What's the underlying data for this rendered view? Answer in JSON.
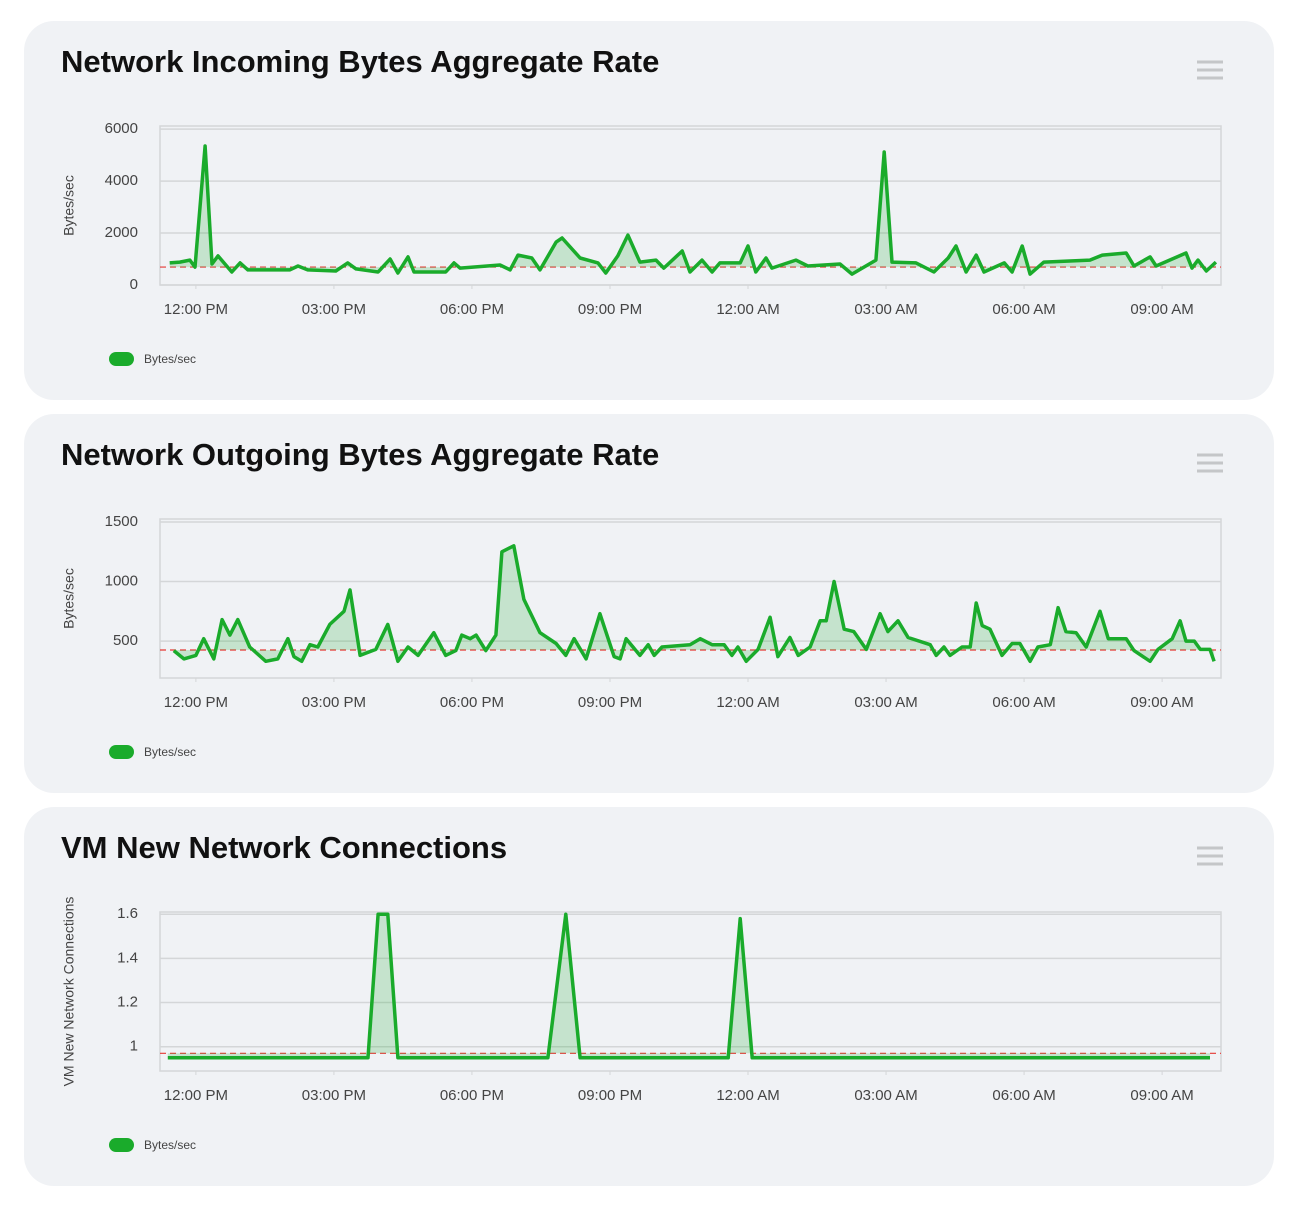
{
  "chart_data": [
    {
      "type": "line",
      "title": "Network Incoming Bytes Aggregate Rate",
      "ylabel": "Bytes/sec",
      "legend": "bottom-left",
      "grid": true,
      "x": [
        11.43,
        11.65,
        11.87,
        11.98,
        12.2,
        12.35,
        12.48,
        12.78,
        12.96,
        13.13,
        14.04,
        14.22,
        14.43,
        15.04,
        15.3,
        15.48,
        15.96,
        16.22,
        16.39,
        16.61,
        16.74,
        17.43,
        17.61,
        17.74,
        18.61,
        18.83,
        19,
        19.3,
        19.48,
        19.83,
        19.96,
        20.35,
        20.74,
        20.91,
        21.17,
        21.39,
        21.65,
        22,
        22.17,
        22.57,
        22.74,
        23,
        23.22,
        23.39,
        23.83,
        24,
        24.17,
        24.39,
        24.52,
        25.04,
        25.3,
        26,
        26.26,
        26.78,
        26.96,
        27.13,
        27.65,
        28.04,
        28.35,
        28.52,
        28.74,
        28.96,
        29.13,
        29.57,
        29.74,
        29.96,
        30.13,
        30.43,
        31.43,
        31.7,
        32.22,
        32.39,
        32.74,
        32.87,
        33.52,
        33.65,
        33.78,
        33.96,
        34.17
      ],
      "series": [
        {
          "name": "Bytes/sec",
          "color": "#1aab2b",
          "values": [
            850,
            880,
            960,
            690,
            5350,
            810,
            1120,
            500,
            850,
            580,
            580,
            730,
            580,
            540,
            850,
            620,
            500,
            1000,
            460,
            1080,
            500,
            500,
            850,
            650,
            770,
            580,
            1150,
            1040,
            580,
            1650,
            1810,
            1040,
            850,
            460,
            1120,
            1920,
            880,
            960,
            650,
            1310,
            500,
            960,
            500,
            850,
            850,
            1500,
            500,
            1040,
            650,
            960,
            730,
            810,
            420,
            960,
            5120,
            880,
            850,
            500,
            1040,
            1500,
            500,
            1150,
            500,
            850,
            500,
            1500,
            420,
            880,
            960,
            1150,
            1230,
            730,
            1080,
            730,
            1230,
            650,
            960,
            540,
            880
          ]
        }
      ],
      "reference_line": {
        "value": 690,
        "color": "#e53935"
      },
      "xlim": [
        11.22,
        34.28
      ],
      "xticks": [
        {
          "value": 12,
          "label": "12:00 PM"
        },
        {
          "value": 15,
          "label": "03:00 PM"
        },
        {
          "value": 18,
          "label": "06:00 PM"
        },
        {
          "value": 21,
          "label": "09:00 PM"
        },
        {
          "value": 24,
          "label": "12:00 AM"
        },
        {
          "value": 27,
          "label": "03:00 AM"
        },
        {
          "value": 30,
          "label": "06:00 AM"
        },
        {
          "value": 33,
          "label": "09:00 AM"
        }
      ],
      "ylim": [
        0,
        6120
      ],
      "yticks": [
        0,
        2000,
        4000,
        6000
      ]
    },
    {
      "type": "line",
      "title": "Network Outgoing Bytes Aggregate Rate",
      "ylabel": "Bytes/sec",
      "legend": "bottom-left",
      "grid": true,
      "x": [
        11.52,
        11.74,
        12,
        12.17,
        12.39,
        12.57,
        12.74,
        12.91,
        13.17,
        13.52,
        13.78,
        14,
        14.13,
        14.3,
        14.48,
        14.65,
        14.91,
        15.22,
        15.35,
        15.57,
        15.91,
        16.17,
        16.39,
        16.61,
        16.83,
        17.17,
        17.43,
        17.65,
        17.78,
        17.96,
        18.09,
        18.3,
        18.52,
        18.65,
        18.91,
        19.13,
        19.48,
        19.83,
        20.04,
        20.22,
        20.48,
        20.78,
        21.09,
        21.22,
        21.35,
        21.65,
        21.83,
        21.96,
        22.13,
        22.74,
        22.96,
        23.22,
        23.48,
        23.65,
        23.78,
        23.96,
        24.22,
        24.48,
        24.65,
        24.91,
        25.09,
        25.35,
        25.57,
        25.7,
        25.87,
        26.09,
        26.3,
        26.57,
        26.87,
        27.04,
        27.26,
        27.48,
        27.96,
        28.09,
        28.26,
        28.39,
        28.65,
        28.83,
        28.96,
        29.09,
        29.26,
        29.52,
        29.74,
        29.91,
        30.13,
        30.3,
        30.57,
        30.74,
        30.91,
        31.13,
        31.35,
        31.65,
        31.83,
        32.22,
        32.39,
        32.74,
        32.91,
        33.22,
        33.39,
        33.52,
        33.7,
        33.83,
        34.04,
        34.13
      ],
      "series": [
        {
          "name": "Bytes/sec",
          "color": "#1aab2b",
          "values": [
            420,
            350,
            380,
            520,
            350,
            680,
            550,
            680,
            450,
            330,
            350,
            520,
            370,
            330,
            470,
            450,
            640,
            750,
            930,
            380,
            430,
            640,
            330,
            450,
            380,
            570,
            380,
            420,
            550,
            520,
            550,
            420,
            550,
            1250,
            1300,
            850,
            570,
            480,
            380,
            520,
            350,
            730,
            370,
            350,
            520,
            380,
            470,
            380,
            450,
            470,
            520,
            470,
            470,
            380,
            450,
            330,
            430,
            700,
            370,
            530,
            380,
            450,
            670,
            670,
            1000,
            600,
            580,
            430,
            730,
            580,
            670,
            530,
            470,
            380,
            450,
            380,
            450,
            450,
            820,
            630,
            600,
            380,
            480,
            480,
            330,
            450,
            470,
            780,
            580,
            570,
            450,
            750,
            520,
            520,
            420,
            330,
            430,
            520,
            670,
            500,
            500,
            430,
            430,
            330
          ]
        }
      ],
      "reference_line": {
        "value": 425,
        "color": "#e53935"
      },
      "xlim": [
        11.22,
        34.28
      ],
      "xticks": [
        {
          "value": 12,
          "label": "12:00 PM"
        },
        {
          "value": 15,
          "label": "03:00 PM"
        },
        {
          "value": 18,
          "label": "06:00 PM"
        },
        {
          "value": 21,
          "label": "09:00 PM"
        },
        {
          "value": 24,
          "label": "12:00 AM"
        },
        {
          "value": 27,
          "label": "03:00 AM"
        },
        {
          "value": 30,
          "label": "06:00 AM"
        },
        {
          "value": 33,
          "label": "09:00 AM"
        }
      ],
      "ylim": [
        190,
        1525
      ],
      "yticks": [
        500,
        1000,
        1500
      ]
    },
    {
      "type": "line",
      "title": "VM New Network Connections",
      "ylabel": "VM New Network Connections",
      "legend": "bottom-left",
      "grid": true,
      "x": [
        11.39,
        15.74,
        15.96,
        16.17,
        16.39,
        19.65,
        20.04,
        20.35,
        23.57,
        23.83,
        24.09,
        34.04
      ],
      "series": [
        {
          "name": "Bytes/sec",
          "color": "#1aab2b",
          "values": [
            0.95,
            0.95,
            1.6,
            1.6,
            0.95,
            0.95,
            1.6,
            0.95,
            0.95,
            1.58,
            0.95,
            0.95
          ]
        }
      ],
      "reference_line": {
        "value": 0.97,
        "color": "#e53935"
      },
      "xlim": [
        11.22,
        34.28
      ],
      "xticks": [
        {
          "value": 12,
          "label": "12:00 PM"
        },
        {
          "value": 15,
          "label": "03:00 PM"
        },
        {
          "value": 18,
          "label": "06:00 PM"
        },
        {
          "value": 21,
          "label": "09:00 PM"
        },
        {
          "value": 24,
          "label": "12:00 AM"
        },
        {
          "value": 27,
          "label": "03:00 AM"
        },
        {
          "value": 30,
          "label": "06:00 AM"
        },
        {
          "value": 33,
          "label": "09:00 AM"
        }
      ],
      "ylim": [
        0.89,
        1.61
      ],
      "yticks": [
        1,
        1.2,
        1.4,
        1.6
      ]
    }
  ]
}
